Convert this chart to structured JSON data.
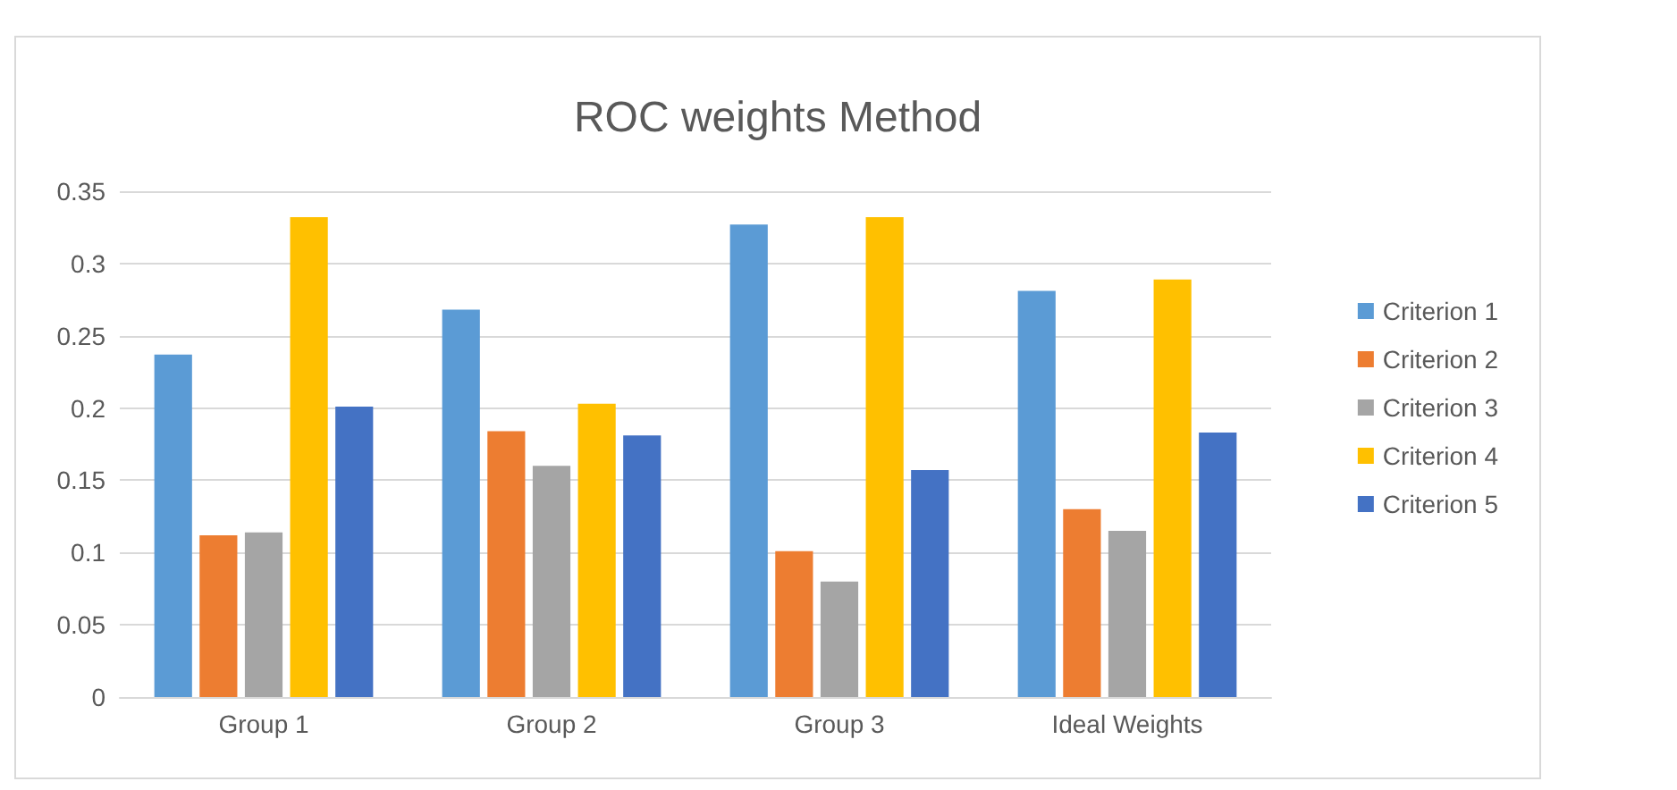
{
  "chart_data": {
    "type": "bar",
    "title": "ROC weights Method",
    "categories": [
      "Group 1",
      "Group 2",
      "Group 3",
      "Ideal Weights"
    ],
    "series": [
      {
        "name": "Criterion 1",
        "color": "#5b9bd5",
        "values": [
          0.237,
          0.268,
          0.327,
          0.281
        ]
      },
      {
        "name": "Criterion 2",
        "color": "#ed7d31",
        "values": [
          0.112,
          0.184,
          0.101,
          0.13
        ]
      },
      {
        "name": "Criterion 3",
        "color": "#a5a5a5",
        "values": [
          0.114,
          0.16,
          0.08,
          0.115
        ]
      },
      {
        "name": "Criterion 4",
        "color": "#ffc000",
        "values": [
          0.332,
          0.203,
          0.332,
          0.289
        ]
      },
      {
        "name": "Criterion 5",
        "color": "#4472c4",
        "values": [
          0.201,
          0.181,
          0.157,
          0.183
        ]
      }
    ],
    "ylim": [
      0,
      0.35
    ],
    "yticks": [
      0,
      0.05,
      0.1,
      0.15,
      0.2,
      0.25,
      0.3,
      0.35
    ],
    "grid": "y",
    "legend": "right"
  }
}
